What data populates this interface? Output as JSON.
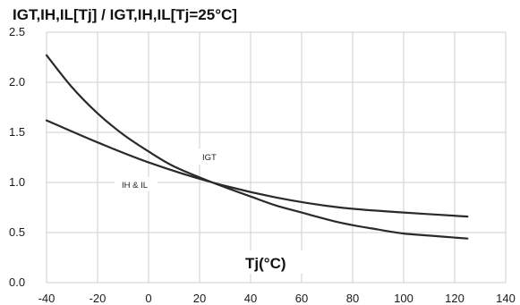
{
  "chart_data": {
    "type": "line",
    "title": "IGT,IH,IL[Tj] / IGT,IH,IL[Tj=25°C]",
    "xlabel": "Tj(°C)",
    "ylabel": "",
    "xlim": [
      -40,
      140
    ],
    "ylim": [
      0.0,
      2.5
    ],
    "x_ticks": [
      "-40",
      "-20",
      "0",
      "20",
      "40",
      "60",
      "80",
      "100",
      "120",
      "140"
    ],
    "y_ticks": [
      "0.0",
      "0.5",
      "1.0",
      "1.5",
      "2.0",
      "2.5"
    ],
    "grid": true,
    "series": [
      {
        "name": "IGT",
        "x": [
          -40,
          -30,
          -20,
          -10,
          0,
          10,
          25,
          40,
          50,
          60,
          75,
          90,
          100,
          110,
          125
        ],
        "y": [
          2.27,
          1.95,
          1.69,
          1.48,
          1.31,
          1.16,
          1.0,
          0.86,
          0.77,
          0.7,
          0.6,
          0.53,
          0.49,
          0.47,
          0.44
        ]
      },
      {
        "name": "IH & IL",
        "x": [
          -40,
          -20,
          0,
          25,
          50,
          75,
          100,
          125
        ],
        "y": [
          1.62,
          1.4,
          1.2,
          1.0,
          0.85,
          0.75,
          0.7,
          0.66
        ]
      }
    ],
    "annotations": [
      {
        "text": "IGT",
        "target": "IGT"
      },
      {
        "text": "IH & IL",
        "target": "IH & IL"
      }
    ]
  }
}
